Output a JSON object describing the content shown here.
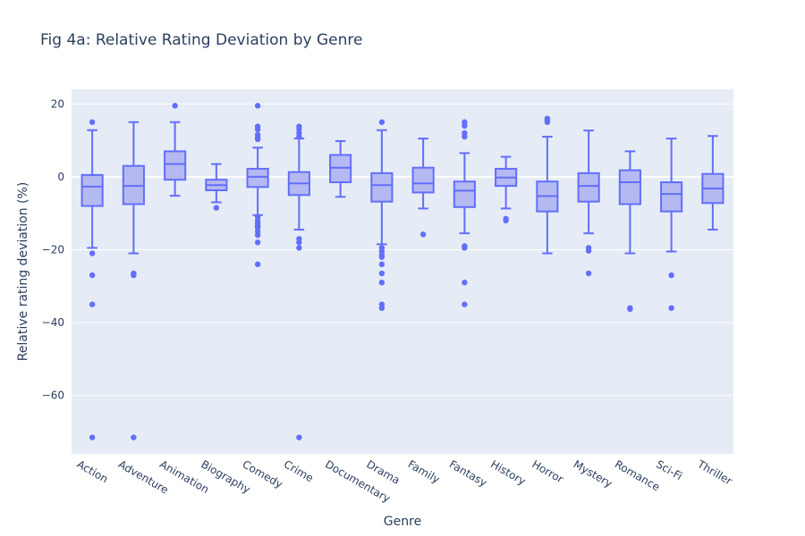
{
  "chart_data": {
    "type": "box",
    "title": "Fig 4a: Relative Rating Deviation by Genre",
    "xlabel": "Genre",
    "ylabel": "Relative rating deviation (%)",
    "ylim": [
      -76,
      24
    ],
    "yticks": [
      20,
      0,
      -20,
      -40,
      -60
    ],
    "ytick_labels": [
      "20",
      "0",
      "−20",
      "−40",
      "−60"
    ],
    "grid": true,
    "colors": {
      "box_line": "#636efa",
      "box_fill": "#b5b9f1",
      "plot_bg": "#e5ecf6",
      "gridline": "#ffffff",
      "text": "#2a3f5f"
    },
    "categories": [
      "Action",
      "Adventure",
      "Animation",
      "Biography",
      "Comedy",
      "Crime",
      "Documentary",
      "Drama",
      "Family",
      "Fantasy",
      "History",
      "Horror",
      "Mystery",
      "Romance",
      "Sci-Fi",
      "Thriller"
    ],
    "boxes": [
      {
        "genre": "Action",
        "min": -19.5,
        "q1": -8,
        "median": -2.7,
        "q3": 0.5,
        "max": 12.8,
        "outliers": [
          15,
          -21,
          -27,
          -35,
          -71.5
        ]
      },
      {
        "genre": "Adventure",
        "min": -21,
        "q1": -7.5,
        "median": -2.5,
        "q3": 3,
        "max": 15,
        "outliers": [
          -26.5,
          -27,
          -71.5
        ]
      },
      {
        "genre": "Animation",
        "min": -5.2,
        "q1": -0.8,
        "median": 3.5,
        "q3": 7,
        "max": 15,
        "outliers": [
          19.5
        ]
      },
      {
        "genre": "Biography",
        "min": -7,
        "q1": -3.7,
        "median": -2.3,
        "q3": -0.8,
        "max": 3.5,
        "outliers": [
          -8.5
        ]
      },
      {
        "genre": "Comedy",
        "min": -10.5,
        "q1": -2.8,
        "median": 0,
        "q3": 2.2,
        "max": 8,
        "outliers": [
          19.5,
          13.8,
          13,
          11.5,
          10.8,
          10.3,
          -11,
          -12,
          -12.8,
          -13.5,
          -14,
          -15,
          -16,
          -18,
          -24
        ]
      },
      {
        "genre": "Crime",
        "min": -14.5,
        "q1": -5,
        "median": -1.8,
        "q3": 1.3,
        "max": 10.5,
        "outliers": [
          13.8,
          13,
          12,
          11,
          -17,
          -18,
          -19.5,
          -71.5
        ]
      },
      {
        "genre": "Documentary",
        "min": -5.5,
        "q1": -1.5,
        "median": 2.5,
        "q3": 6,
        "max": 9.8,
        "outliers": []
      },
      {
        "genre": "Drama",
        "min": -18.5,
        "q1": -6.8,
        "median": -2.3,
        "q3": 1,
        "max": 12.8,
        "outliers": [
          15,
          -19.5,
          -20.5,
          -21.5,
          -22,
          -24,
          -26.5,
          -29,
          -35,
          -36
        ]
      },
      {
        "genre": "Family",
        "min": -8.7,
        "q1": -4.3,
        "median": -1.8,
        "q3": 2.5,
        "max": 10.5,
        "outliers": [
          -15.8
        ]
      },
      {
        "genre": "Fantasy",
        "min": -15.5,
        "q1": -8.3,
        "median": -3.8,
        "q3": -1.3,
        "max": 6.5,
        "outliers": [
          15,
          14,
          12,
          11,
          -19,
          -19.5,
          -29,
          -35
        ]
      },
      {
        "genre": "History",
        "min": -8.7,
        "q1": -2.5,
        "median": -0.2,
        "q3": 2.2,
        "max": 5.5,
        "outliers": [
          -11.5,
          -12
        ]
      },
      {
        "genre": "Horror",
        "min": -21,
        "q1": -9.5,
        "median": -5.3,
        "q3": -1.3,
        "max": 11,
        "outliers": [
          16,
          15.5,
          15
        ]
      },
      {
        "genre": "Mystery",
        "min": -15.5,
        "q1": -6.8,
        "median": -2.5,
        "q3": 1,
        "max": 12.7,
        "outliers": [
          -19.5,
          -20.3,
          -26.5
        ]
      },
      {
        "genre": "Romance",
        "min": -21,
        "q1": -7.5,
        "median": -1.5,
        "q3": 1.8,
        "max": 7,
        "outliers": [
          -36,
          -36.3
        ]
      },
      {
        "genre": "Sci-Fi",
        "min": -20.5,
        "q1": -9.5,
        "median": -4.7,
        "q3": -1.5,
        "max": 10.5,
        "outliers": [
          -27,
          -36
        ]
      },
      {
        "genre": "Thriller",
        "min": -14.5,
        "q1": -7.2,
        "median": -3.2,
        "q3": 0.8,
        "max": 11.2,
        "outliers": []
      }
    ]
  }
}
